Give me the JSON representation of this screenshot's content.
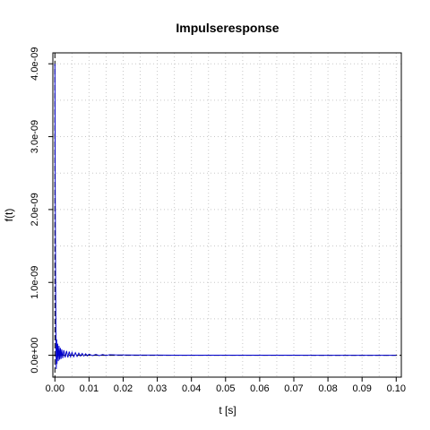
{
  "chart_data": {
    "type": "line",
    "title": "Impulseresponse",
    "xlabel": "t [s]",
    "ylabel": "f(t)",
    "xlim": [
      -0.0006,
      0.1015
    ],
    "ylim": [
      -3e-10,
      4.15e-09
    ],
    "xticks": [
      0.0,
      0.01,
      0.02,
      0.03,
      0.04,
      0.05,
      0.06,
      0.07,
      0.08,
      0.09,
      0.1
    ],
    "xtick_labels": [
      "0.00",
      "0.01",
      "0.02",
      "0.03",
      "0.04",
      "0.05",
      "0.06",
      "0.07",
      "0.08",
      "0.09",
      "0.10"
    ],
    "yticks": [
      0,
      1e-09,
      2e-09,
      3e-09,
      4e-09
    ],
    "ytick_labels": [
      "0.0e+00",
      "1.0e-09",
      "2.0e-09",
      "3.0e-09",
      "4.0e-09"
    ],
    "grid": true,
    "reference_lines": {
      "h": 0,
      "v": 0
    },
    "series": [
      {
        "color": "#0000cc",
        "x": [
          0.0,
          0.0001,
          0.0002,
          0.0003,
          0.0004,
          0.0005,
          0.0006,
          0.0008,
          0.001,
          0.0012,
          0.0014,
          0.0016,
          0.0018,
          0.002,
          0.0023,
          0.0026,
          0.003,
          0.0034,
          0.0038,
          0.0042,
          0.0046,
          0.005,
          0.0055,
          0.006,
          0.0065,
          0.007,
          0.0075,
          0.008,
          0.0085,
          0.009,
          0.0095,
          0.01,
          0.011,
          0.012,
          0.013,
          0.014,
          0.015,
          0.016,
          0.018,
          0.02,
          0.025,
          0.03,
          0.035,
          0.04,
          0.05,
          0.06,
          0.07,
          0.08,
          0.09,
          0.1
        ],
        "y": [
          4e-09,
          2.3e-09,
          1.1e-09,
          3e-10,
          -1.9e-10,
          2.2e-10,
          -1.2e-10,
          1.6e-10,
          -8e-11,
          1.3e-10,
          -6e-11,
          1e-10,
          -5e-11,
          8e-11,
          -4e-11,
          7e-11,
          -3e-11,
          6e-11,
          -3e-11,
          5e-11,
          -2e-11,
          4e-11,
          -2e-11,
          3.5e-11,
          -1.5e-11,
          3e-11,
          -1e-11,
          2.5e-11,
          -1e-11,
          2e-11,
          -8e-12,
          1.5e-11,
          -5e-12,
          1.2e-11,
          -4e-12,
          1e-11,
          -3e-12,
          8e-12,
          5e-12,
          4e-12,
          3e-12,
          2e-12,
          1.5e-12,
          1e-12,
          8e-13,
          5e-13,
          4e-13,
          3e-13,
          2e-13,
          1e-13
        ]
      }
    ]
  }
}
